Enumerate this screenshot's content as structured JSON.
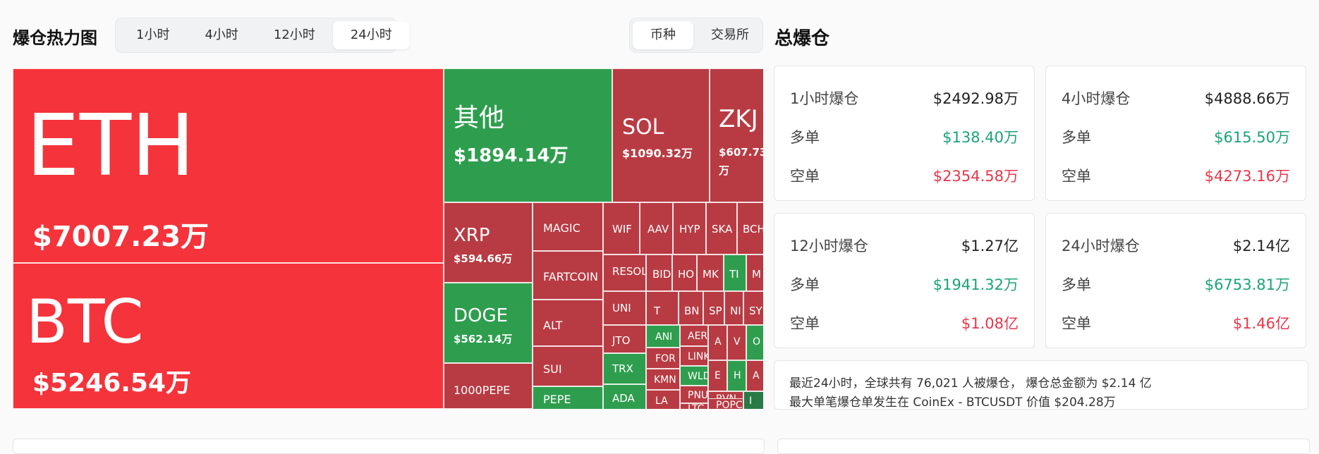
{
  "heatmap": {
    "title": "爆仓热力图",
    "time_tabs": [
      "1小时",
      "4小时",
      "12小时",
      "24小时"
    ],
    "active_time_tab": "24小时",
    "group_tabs": [
      "币种",
      "交易所"
    ],
    "active_group_tab": "币种",
    "colors": {
      "bright_red": "#f5333b",
      "red": "#b83b43",
      "green": "#2e9e4e",
      "dark_green": "#2a7a45"
    },
    "tiles": [
      {
        "symbol": "ETH",
        "amount": "$7007.23万"
      },
      {
        "symbol": "BTC",
        "amount": "$5246.54万"
      },
      {
        "symbol": "其他",
        "amount": "$1894.14万"
      },
      {
        "symbol": "SOL",
        "amount": "$1090.32万"
      },
      {
        "symbol": "ZKJ",
        "amount": "$607.73万"
      },
      {
        "symbol": "XRP",
        "amount": "$594.66万"
      },
      {
        "symbol": "DOGE",
        "amount": "$562.14万"
      },
      {
        "symbol": "1000PEPE",
        "amount": ""
      },
      {
        "symbol": "MAGIC",
        "amount": ""
      },
      {
        "symbol": "FARTCOIN",
        "amount": ""
      },
      {
        "symbol": "ALT",
        "amount": ""
      },
      {
        "symbol": "SUI",
        "amount": ""
      },
      {
        "symbol": "PEPE",
        "amount": ""
      },
      {
        "symbol": "WIF",
        "amount": ""
      },
      {
        "symbol": "AAV",
        "amount": ""
      },
      {
        "symbol": "HYP",
        "amount": ""
      },
      {
        "symbol": "SKA",
        "amount": ""
      },
      {
        "symbol": "BCH",
        "amount": ""
      },
      {
        "symbol": "RESOL",
        "amount": ""
      },
      {
        "symbol": "BID",
        "amount": ""
      },
      {
        "symbol": "HO",
        "amount": ""
      },
      {
        "symbol": "MK",
        "amount": ""
      },
      {
        "symbol": "TI",
        "amount": ""
      },
      {
        "symbol": "M",
        "amount": ""
      },
      {
        "symbol": "UNI",
        "amount": ""
      },
      {
        "symbol": "T",
        "amount": ""
      },
      {
        "symbol": "BN",
        "amount": ""
      },
      {
        "symbol": "SP",
        "amount": ""
      },
      {
        "symbol": "NI",
        "amount": ""
      },
      {
        "symbol": "SY",
        "amount": ""
      },
      {
        "symbol": "JTO",
        "amount": ""
      },
      {
        "symbol": "ANI",
        "amount": ""
      },
      {
        "symbol": "AERO",
        "amount": ""
      },
      {
        "symbol": "A",
        "amount": ""
      },
      {
        "symbol": "V",
        "amount": ""
      },
      {
        "symbol": "O",
        "amount": ""
      },
      {
        "symbol": "LINK",
        "amount": ""
      },
      {
        "symbol": "FOR",
        "amount": ""
      },
      {
        "symbol": "TRX",
        "amount": ""
      },
      {
        "symbol": "WLD",
        "amount": ""
      },
      {
        "symbol": "E",
        "amount": ""
      },
      {
        "symbol": "H",
        "amount": ""
      },
      {
        "symbol": "A",
        "amount": ""
      },
      {
        "symbol": "KMN",
        "amount": ""
      },
      {
        "symbol": "PNU",
        "amount": ""
      },
      {
        "symbol": "ADA",
        "amount": ""
      },
      {
        "symbol": "LA",
        "amount": ""
      },
      {
        "symbol": "RVN",
        "amount": ""
      },
      {
        "symbol": "LTC",
        "amount": ""
      },
      {
        "symbol": "POPC",
        "amount": ""
      },
      {
        "symbol": "I",
        "amount": ""
      }
    ]
  },
  "total": {
    "title": "总爆仓",
    "cards": [
      {
        "title": "1小时爆仓",
        "total": "$2492.98万",
        "long_label": "多单",
        "long": "$138.40万",
        "short_label": "空单",
        "short": "$2354.58万"
      },
      {
        "title": "4小时爆仓",
        "total": "$4888.66万",
        "long_label": "多单",
        "long": "$615.50万",
        "short_label": "空单",
        "short": "$4273.16万"
      },
      {
        "title": "12小时爆仓",
        "total": "$1.27亿",
        "long_label": "多单",
        "long": "$1941.32万",
        "short_label": "空单",
        "short": "$1.08亿"
      },
      {
        "title": "24小时爆仓",
        "total": "$2.14亿",
        "long_label": "多单",
        "long": "$6753.81万",
        "short_label": "空单",
        "short": "$1.46亿"
      }
    ],
    "summary_line1": "最近24小时，全球共有 76,021 人被爆仓， 爆仓总金额为 $2.14 亿",
    "summary_line2": "最大单笔爆仓单发生在 CoinEx - BTCUSDT 价值 $204.28万"
  }
}
